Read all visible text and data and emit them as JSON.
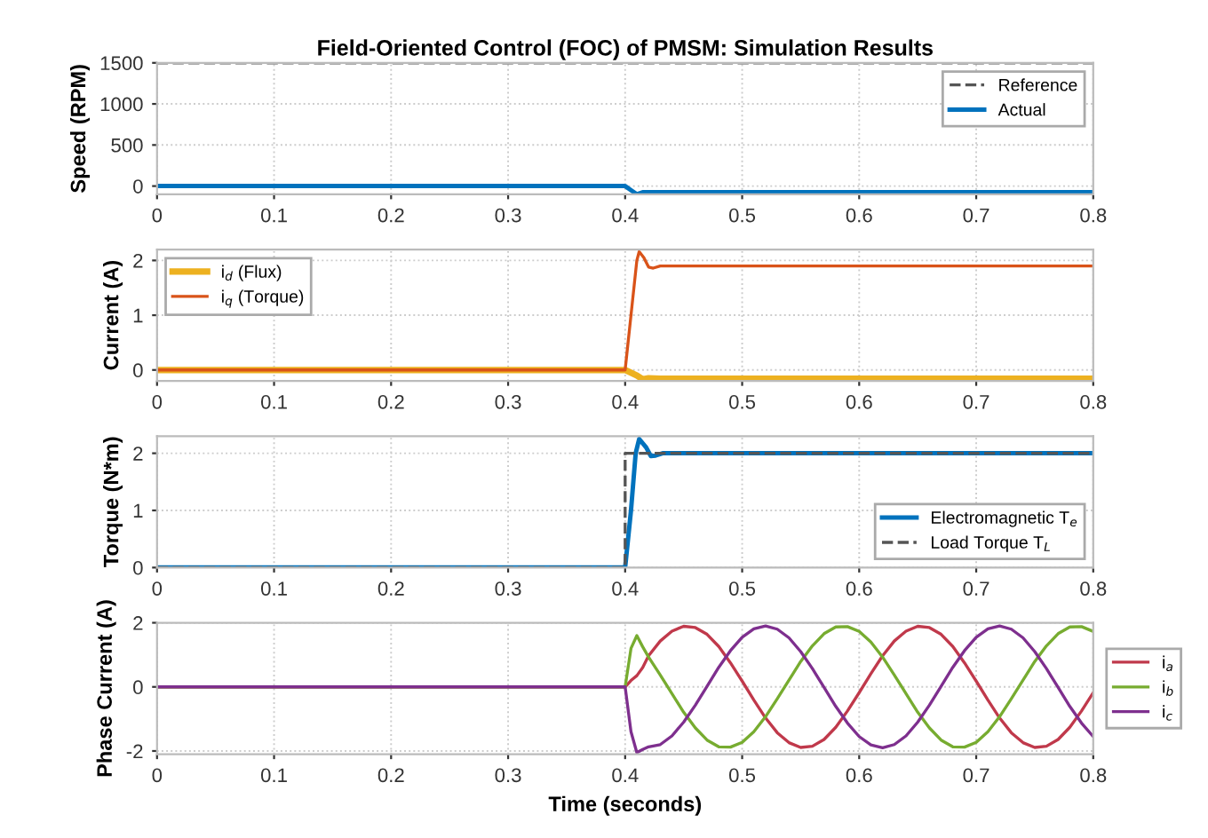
{
  "chart_data": [
    {
      "type": "line",
      "title": "Field-Oriented Control (FOC) of PMSM: Simulation Results",
      "ylabel": "Speed (RPM)",
      "xlim": [
        0,
        0.8
      ],
      "xticks": [
        0,
        0.1,
        0.2,
        0.3,
        0.4,
        0.5,
        0.6,
        0.7,
        0.8
      ],
      "ylim": [
        -100,
        1500
      ],
      "yticks": [
        0,
        500,
        1000,
        1500
      ],
      "grid": true,
      "legend": "top right",
      "series": [
        {
          "name": "Reference",
          "color": "#555555",
          "line_style": "dashed",
          "x": [
            0,
            0.8
          ],
          "values": [
            1500,
            1500
          ]
        },
        {
          "name": "Actual",
          "color": "#0072bd",
          "line_style": "solid",
          "x": [
            0,
            0.4,
            0.405,
            0.41,
            0.415,
            0.42,
            0.8
          ],
          "values": [
            0,
            0,
            -50,
            -100,
            -75,
            -75,
            -75
          ]
        }
      ]
    },
    {
      "type": "line",
      "ylabel": "Current (A)",
      "xlim": [
        0,
        0.8
      ],
      "xticks": [
        0,
        0.1,
        0.2,
        0.3,
        0.4,
        0.5,
        0.6,
        0.7,
        0.8
      ],
      "ylim": [
        -0.2,
        2.2
      ],
      "yticks": [
        0,
        1,
        2
      ],
      "grid": true,
      "legend": "top left",
      "series": [
        {
          "name": "i$_{d}$ (Flux)",
          "color": "#edb120",
          "line_style": "solid",
          "x": [
            0,
            0.4,
            0.41,
            0.415,
            0.42,
            0.43,
            0.8
          ],
          "values": [
            0,
            0,
            -0.1,
            -0.17,
            -0.15,
            -0.16,
            -0.16
          ]
        },
        {
          "name": "i$_{q}$ (Torque)",
          "color": "#d95319",
          "line_style": "solid",
          "x": [
            0,
            0.4,
            0.405,
            0.41,
            0.412,
            0.416,
            0.42,
            0.424,
            0.43,
            0.8
          ],
          "values": [
            0,
            0,
            1.0,
            2.0,
            2.16,
            2.05,
            1.88,
            1.86,
            1.9,
            1.9
          ]
        }
      ]
    },
    {
      "type": "line",
      "ylabel": "Torque (N*m)",
      "xlim": [
        0,
        0.8
      ],
      "xticks": [
        0,
        0.1,
        0.2,
        0.3,
        0.4,
        0.5,
        0.6,
        0.7,
        0.8
      ],
      "ylim": [
        0,
        2.3
      ],
      "yticks": [
        0,
        1,
        2
      ],
      "grid": true,
      "legend": "bottom right",
      "series": [
        {
          "name": "Electromagnetic T$_{e}$",
          "color": "#0072bd",
          "line_style": "solid",
          "x": [
            0,
            0.4,
            0.405,
            0.409,
            0.412,
            0.418,
            0.422,
            0.426,
            0.432,
            0.8
          ],
          "values": [
            0,
            0,
            1.0,
            2.0,
            2.25,
            2.1,
            1.95,
            1.96,
            2.0,
            2.0
          ]
        },
        {
          "name": "Load Torque T$_{L}$",
          "color": "#555555",
          "line_style": "dashed",
          "x": [
            0,
            0.4,
            0.4,
            0.8
          ],
          "values": [
            0,
            0,
            2,
            2
          ]
        }
      ]
    },
    {
      "type": "line",
      "ylabel": "Phase Current (A)",
      "xlabel": "Time (seconds)",
      "xlim": [
        0,
        0.8
      ],
      "xticks": [
        0,
        0.1,
        0.2,
        0.3,
        0.4,
        0.5,
        0.6,
        0.7,
        0.8
      ],
      "ylim": [
        -2.1,
        2
      ],
      "yticks": [
        -2,
        0,
        2
      ],
      "grid": true,
      "legend": "right",
      "x": [
        0,
        0.4,
        0.405,
        0.41,
        0.415,
        0.42,
        0.43,
        0.44,
        0.45,
        0.46,
        0.47,
        0.48,
        0.49,
        0.5,
        0.51,
        0.52,
        0.53,
        0.54,
        0.55,
        0.56,
        0.57,
        0.58,
        0.59,
        0.6,
        0.61,
        0.62,
        0.63,
        0.64,
        0.65,
        0.66,
        0.67,
        0.68,
        0.69,
        0.7,
        0.71,
        0.72,
        0.73,
        0.74,
        0.75,
        0.76,
        0.77,
        0.78,
        0.79,
        0.8
      ],
      "series": [
        {
          "name": "i$_{a}$",
          "color": "#c0394b",
          "line_style": "solid",
          "values": [
            0,
            0,
            0.2,
            0.35,
            0.6,
            0.97,
            1.43,
            1.74,
            1.89,
            1.85,
            1.64,
            1.26,
            0.75,
            0.18,
            -0.41,
            -0.97,
            -1.43,
            -1.74,
            -1.89,
            -1.85,
            -1.64,
            -1.26,
            -0.75,
            -0.18,
            0.41,
            0.97,
            1.43,
            1.74,
            1.89,
            1.85,
            1.64,
            1.26,
            0.75,
            0.18,
            -0.41,
            -0.97,
            -1.43,
            -1.74,
            -1.89,
            -1.85,
            -1.64,
            -1.26,
            -0.75,
            -0.18
          ]
        },
        {
          "name": "i$_{b}$",
          "color": "#77ac30",
          "line_style": "solid",
          "values": [
            0,
            0,
            1.2,
            1.6,
            1.25,
            0.93,
            0.37,
            -0.21,
            -0.79,
            -1.28,
            -1.66,
            -1.87,
            -1.88,
            -1.73,
            -1.4,
            -0.93,
            -0.37,
            0.21,
            0.79,
            1.28,
            1.66,
            1.87,
            1.88,
            1.73,
            1.4,
            0.93,
            0.37,
            -0.21,
            -0.79,
            -1.28,
            -1.66,
            -1.87,
            -1.88,
            -1.73,
            -1.4,
            -0.93,
            -0.37,
            0.21,
            0.79,
            1.28,
            1.66,
            1.87,
            1.88,
            1.73
          ]
        },
        {
          "name": "i$_{c}$",
          "color": "#7e2f8e",
          "line_style": "solid",
          "values": [
            0,
            0,
            -1.4,
            -2.05,
            -1.95,
            -1.87,
            -1.8,
            -1.53,
            -1.1,
            -0.57,
            0.02,
            0.61,
            1.13,
            1.55,
            1.81,
            1.9,
            1.8,
            1.53,
            1.1,
            0.57,
            -0.02,
            -0.61,
            -1.13,
            -1.55,
            -1.81,
            -1.9,
            -1.8,
            -1.53,
            -1.1,
            -0.57,
            0.02,
            0.61,
            1.13,
            1.55,
            1.81,
            1.9,
            1.8,
            1.53,
            1.1,
            0.57,
            -0.02,
            -0.61,
            -1.13,
            -1.55
          ]
        }
      ]
    }
  ]
}
